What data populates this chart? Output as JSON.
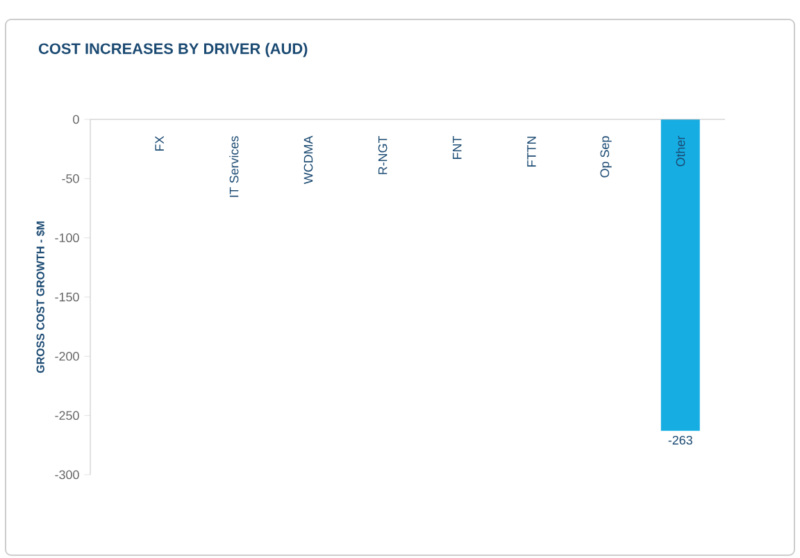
{
  "chart_data": {
    "type": "bar",
    "title": "COST INCREASES BY DRIVER (AUD)",
    "ylabel": "GROSS COST GROWTH - $M",
    "categories": [
      "FX",
      "IT Services",
      "WCDMA",
      "R-NGT",
      "FNT",
      "FTTN",
      "Op Sep",
      "Other"
    ],
    "values": [
      0,
      0,
      0,
      0,
      0,
      0,
      0,
      -263
    ],
    "value_labels": [
      null,
      null,
      null,
      null,
      null,
      null,
      null,
      "-263"
    ],
    "color": "#16ade3",
    "ylim": [
      -300,
      0
    ],
    "yticks": [
      -300,
      -250,
      -200,
      -150,
      -100,
      -50,
      0
    ],
    "grid": false
  }
}
